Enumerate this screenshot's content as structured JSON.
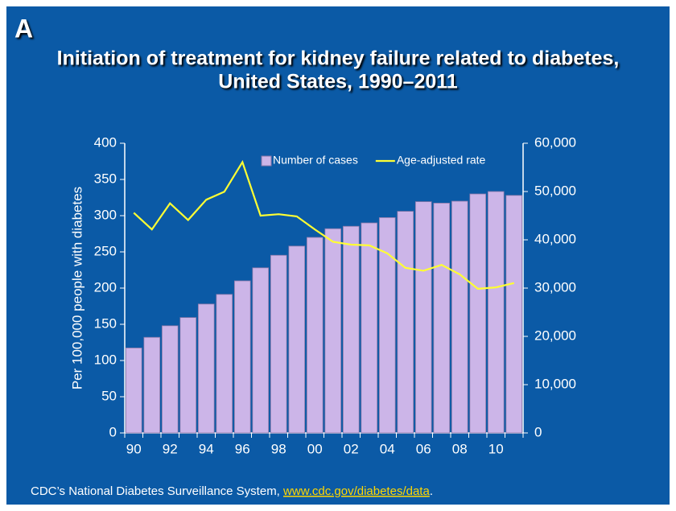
{
  "chart_data": {
    "type": "bar",
    "panel_label": "A",
    "title": "Initiation of treatment for kidney failure related to diabetes,",
    "subtitle": "United States, 1990–2011",
    "ylabel": "Per 100,000 people with diabetes",
    "categories": [
      "90",
      null,
      "92",
      null,
      "94",
      null,
      "96",
      null,
      "98",
      null,
      "00",
      null,
      "02",
      null,
      "04",
      null,
      "06",
      null,
      "08",
      null,
      "10",
      null
    ],
    "series": [
      {
        "name": "Number of cases",
        "type": "bar",
        "axis": "y2",
        "color": "#ccb5e8",
        "values": [
          17600,
          19800,
          22200,
          23900,
          26700,
          28700,
          31500,
          34200,
          36800,
          38700,
          40500,
          42300,
          42800,
          43500,
          44600,
          45900,
          47900,
          47600,
          48000,
          49500,
          50000,
          49200
        ]
      },
      {
        "name": "Age-adjusted rate",
        "type": "line",
        "axis": "y",
        "color": "#ffff33",
        "values": [
          304,
          281,
          317,
          294,
          322,
          333,
          374,
          300,
          302,
          299,
          281,
          264,
          260,
          259,
          248,
          228,
          224,
          232,
          219,
          199,
          201,
          207
        ]
      }
    ],
    "ylim": [
      0,
      400
    ],
    "yticks": [
      0,
      50,
      100,
      150,
      200,
      250,
      300,
      350,
      400
    ],
    "y2lim": [
      0,
      60000
    ],
    "y2ticks": [
      0,
      {
        "value": 10000,
        "label": "10,000"
      },
      {
        "value": 20000,
        "label": "20,000"
      },
      {
        "value": 30000,
        "label": "30,000"
      },
      {
        "value": 40000,
        "label": "40,000"
      },
      {
        "value": 50000,
        "label": "50,000"
      },
      {
        "value": 60000,
        "label": "60,000"
      }
    ],
    "legend": "upper right",
    "source": "CDC’s National Diabetes Surveillance System, ",
    "source_link": "www.cdc.gov/diabetes/data",
    "source_end": "."
  }
}
